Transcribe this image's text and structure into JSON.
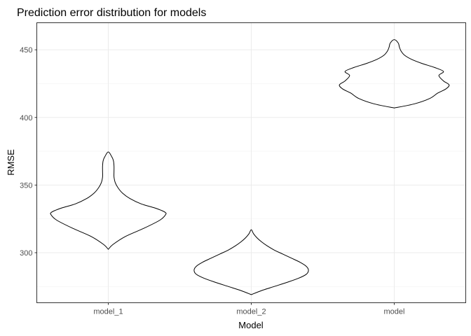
{
  "chart_data": {
    "type": "violin",
    "title": "Prediction error distribution for models",
    "xlabel": "Model",
    "ylabel": "RMSE",
    "categories": [
      "model_1",
      "model_2",
      "model"
    ],
    "ylim": [
      263,
      470
    ],
    "yticks": [
      300,
      350,
      400,
      450
    ],
    "grid": true,
    "series": [
      {
        "category": "model_1",
        "y": [
          302.5,
          306,
          312,
          318,
          324,
          328,
          330,
          333,
          336,
          340,
          344,
          348,
          352,
          356,
          360,
          364,
          368,
          371,
          374.5
        ],
        "width": [
          0.0,
          0.08,
          0.3,
          0.62,
          0.9,
          1.0,
          0.99,
          0.82,
          0.58,
          0.38,
          0.25,
          0.17,
          0.12,
          0.1,
          0.1,
          0.1,
          0.09,
          0.06,
          0.0
        ]
      },
      {
        "category": "model_2",
        "y": [
          269,
          272,
          275,
          278,
          281,
          284,
          287,
          290,
          293,
          296,
          299,
          302,
          305,
          308,
          311,
          314,
          317
        ],
        "width": [
          0.0,
          0.18,
          0.4,
          0.62,
          0.82,
          0.96,
          1.0,
          0.96,
          0.85,
          0.7,
          0.55,
          0.4,
          0.28,
          0.18,
          0.1,
          0.04,
          0.0
        ]
      },
      {
        "category": "model",
        "y": [
          407,
          410,
          414,
          418,
          421,
          424,
          427,
          431,
          434,
          437,
          440,
          443,
          446,
          449,
          452,
          455,
          457.5
        ],
        "width": [
          0.0,
          0.35,
          0.62,
          0.76,
          0.9,
          0.96,
          0.86,
          0.78,
          0.86,
          0.7,
          0.48,
          0.3,
          0.18,
          0.12,
          0.09,
          0.07,
          0.0
        ]
      }
    ]
  }
}
